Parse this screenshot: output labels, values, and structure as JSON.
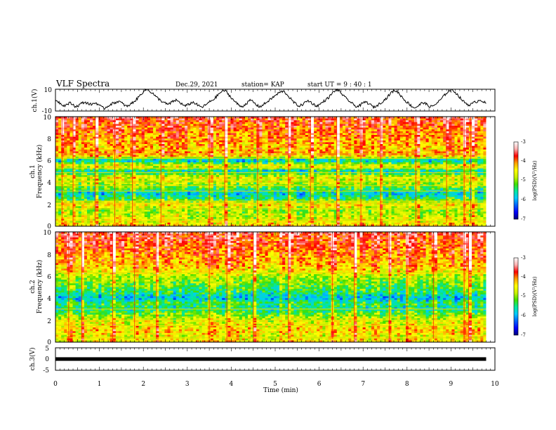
{
  "header": {
    "title": "VLF Spectra",
    "date": "Dec.29, 2021",
    "station": "station= KAP",
    "start": "start  UT =   9 : 40 : 1"
  },
  "colors": {
    "scale": [
      "#00007a",
      "#0000ff",
      "#0060ff",
      "#00c8ff",
      "#00e8a0",
      "#40e000",
      "#c8f000",
      "#ffff00",
      "#ffa000",
      "#ff0000",
      "#ffb0b0",
      "#ffffff"
    ]
  },
  "chart_data": [
    {
      "type": "line",
      "id": "ch1-waveform",
      "ylabel": "ch.1(V)",
      "ylim": [
        -10,
        10
      ],
      "yticks": [
        "10",
        "-10"
      ],
      "xlim": [
        0,
        10
      ],
      "x_end": 9.8,
      "description_series": "ch.1 voltage waveform (approx. envelope)",
      "values": [
        0.5,
        -1.5,
        -3.5,
        -5,
        -4,
        -2.5,
        -4,
        -6,
        -5,
        -3,
        -2,
        -2.5,
        -4,
        -3.5,
        -2.5,
        -4,
        -6.5,
        -7.5,
        -6,
        -4,
        -3,
        -2,
        -1,
        -2.5,
        -4.5,
        -6,
        -4,
        -2,
        0,
        3,
        6,
        9,
        10,
        8,
        6,
        3,
        1,
        -1,
        -2.5,
        -4,
        -3,
        -1,
        0,
        -1.5,
        -3.5,
        -5.5,
        -4.5,
        -3,
        -2,
        -3.5,
        -5.5,
        -6.5,
        -5,
        -3,
        -1,
        0.5,
        3,
        6,
        8,
        9,
        6,
        3,
        0,
        -2.5,
        -5,
        -6,
        -4,
        -2,
        0,
        -2,
        -4.5,
        -6,
        -5,
        -3,
        -1,
        1,
        3,
        5,
        7,
        8,
        7,
        4,
        1,
        -2,
        -4,
        -5.5,
        -4,
        -2,
        -0.5,
        -2,
        -4,
        -5.5,
        -4,
        -2,
        0,
        2,
        5,
        8,
        9.5,
        8,
        5,
        2,
        0,
        -2.5,
        -4.5,
        -6,
        -5,
        -3,
        -1.5,
        -3,
        -5,
        -6.5,
        -5,
        -3,
        -1,
        1,
        4,
        7,
        9,
        8,
        5,
        2,
        -1,
        -3,
        -5.5,
        -7,
        -6,
        -4,
        -2,
        -3.5,
        -5.5,
        -6,
        -4.5,
        -2.5,
        0,
        3,
        6,
        8.5,
        9.5,
        8,
        5,
        2,
        -1,
        -3,
        -4.5,
        -3.5,
        -2,
        -1,
        0.5,
        -1.5,
        -3
      ]
    },
    {
      "type": "heatmap",
      "id": "ch1-spectrogram",
      "ylabel": "ch.1",
      "ylabel2": "Frequency (kHz)",
      "ylim": [
        0,
        10
      ],
      "yticks": [
        "10",
        "8",
        "6",
        "4",
        "2",
        "0"
      ],
      "xlim": [
        0,
        10
      ],
      "x_end": 9.8,
      "colorbar_label": "log(PSD)(V²/Hz)",
      "colorbar_range": [
        -7,
        -3
      ],
      "colorbar_ticks": [
        "-3",
        "-4",
        "-5",
        "-6",
        "-7"
      ],
      "band_freqs_khz": [
        10,
        9.5,
        9,
        8.5,
        8,
        7.5,
        7,
        6.5,
        6,
        5.5,
        5,
        4.5,
        4,
        3.5,
        3,
        2.5,
        2,
        1.5,
        1,
        0.5,
        0
      ],
      "band_levels": [
        -3.7,
        -3.8,
        -3.9,
        -4.0,
        -4.1,
        -4.2,
        -4.3,
        -4.0,
        -5.9,
        -4.5,
        -5.8,
        -4.6,
        -4.8,
        -5.2,
        -5.8,
        -5.4,
        -4.4,
        -4.9,
        -4.8,
        -4.6,
        -4.3
      ],
      "lines_khz": [
        6.6,
        6.2,
        5.3,
        4.9,
        4.1,
        3.7,
        3.2,
        2.3,
        2.1,
        1.6,
        0.5
      ],
      "spikes_min": [
        0.15,
        0.4,
        0.9,
        1.35,
        1.75,
        2.4,
        3.5,
        3.85,
        4.6,
        5.3,
        5.8,
        6.4,
        6.95,
        7.4,
        8.2,
        8.9,
        9.3,
        9.45
      ]
    },
    {
      "type": "heatmap",
      "id": "ch2-spectrogram",
      "ylabel": "ch.2",
      "ylabel2": "Frequency (kHz)",
      "ylim": [
        0,
        10
      ],
      "yticks": [
        "10",
        "8",
        "6",
        "4",
        "2",
        "0"
      ],
      "xlim": [
        0,
        10
      ],
      "x_end": 9.8,
      "colorbar_label": "log(PSD)(V²/Hz)",
      "colorbar_range": [
        -7,
        -3
      ],
      "colorbar_ticks": [
        "-3",
        "-4",
        "-5",
        "-6",
        "-7"
      ],
      "band_freqs_khz": [
        10,
        9.5,
        9,
        8.5,
        8,
        7.5,
        7,
        6.5,
        6,
        5.5,
        5,
        4.5,
        4,
        3.5,
        3,
        2.5,
        2,
        1.5,
        1,
        0.5,
        0
      ],
      "band_levels": [
        -3.6,
        -3.7,
        -3.8,
        -3.9,
        -4.0,
        -4.1,
        -4.2,
        -4.4,
        -4.8,
        -5.0,
        -5.2,
        -5.4,
        -5.9,
        -5.3,
        -5.6,
        -5.0,
        -4.7,
        -4.5,
        -4.3,
        -4.6,
        -4.4
      ],
      "lines_khz": [
        6.3,
        3.0,
        2.0,
        1.5,
        0.4
      ],
      "spikes_min": [
        0.3,
        0.6,
        1.3,
        1.8,
        2.3,
        3.5,
        3.9,
        4.5,
        5.3,
        6.3,
        6.8,
        7.6,
        8.0,
        8.6,
        9.3,
        9.4
      ]
    },
    {
      "type": "line",
      "id": "ch3-waveform",
      "ylabel": "ch.3(V)",
      "ylim": [
        -5,
        5
      ],
      "yticks": [
        "5",
        "0",
        "-5"
      ],
      "xlim": [
        0,
        10
      ],
      "x_end": 9.8,
      "values": [
        0,
        0
      ],
      "band_halfwidth": 0.8
    }
  ],
  "xaxis": {
    "label": "Time (min)",
    "ticks": [
      "0",
      "1",
      "2",
      "3",
      "4",
      "5",
      "6",
      "7",
      "8",
      "9",
      "10"
    ]
  }
}
